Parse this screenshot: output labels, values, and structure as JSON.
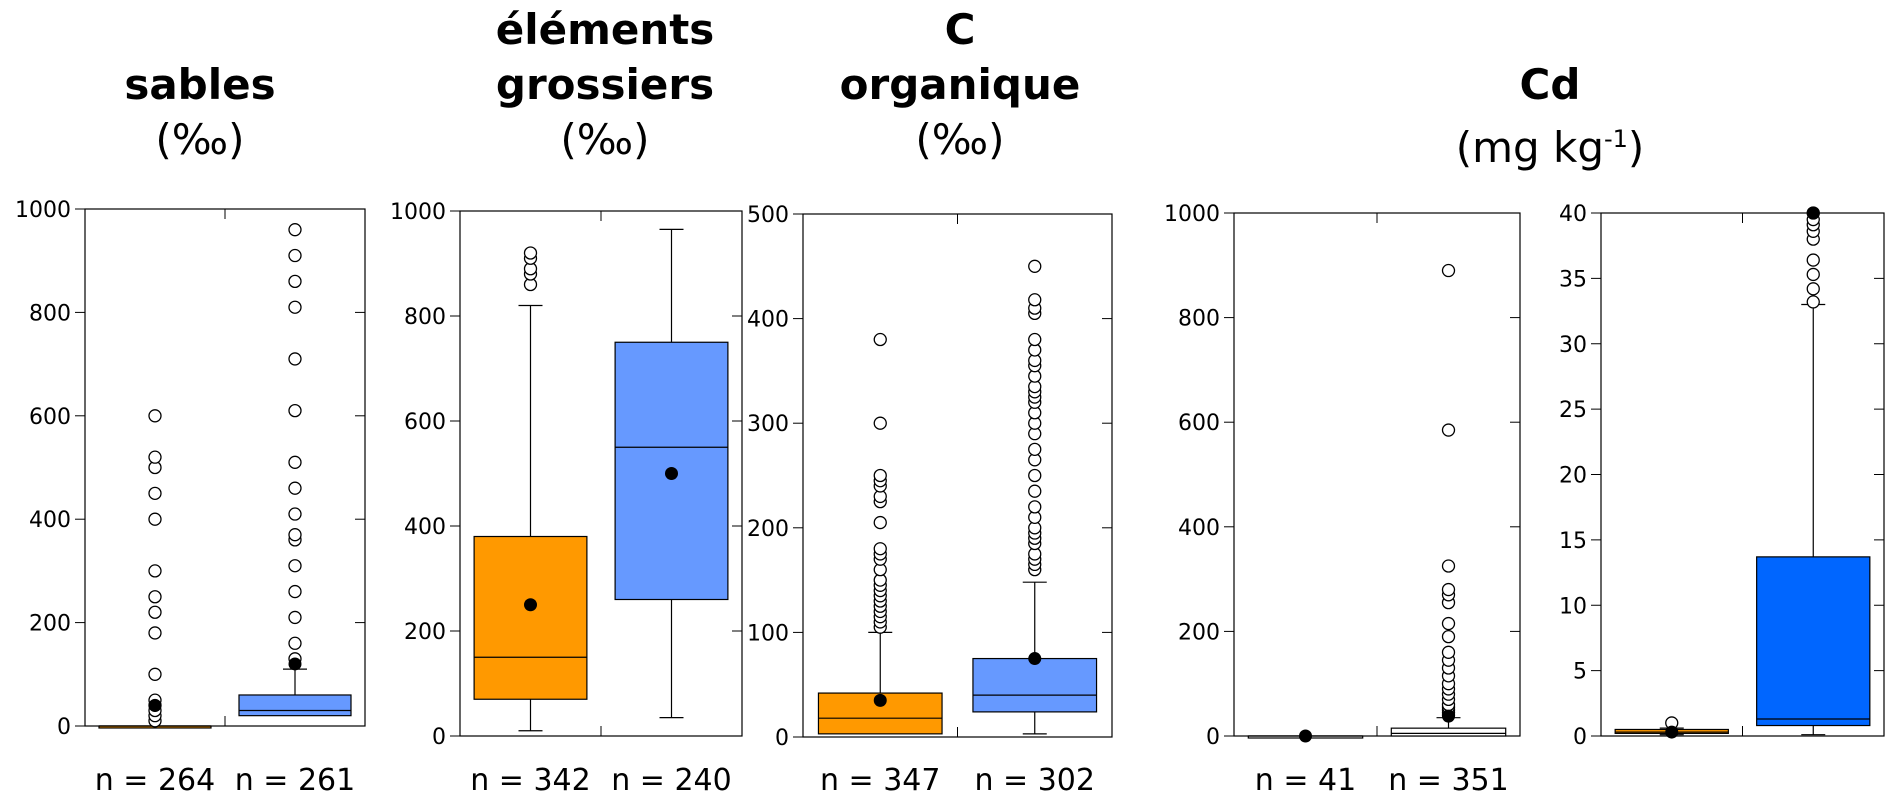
{
  "titles": {
    "sables": {
      "main": "sables",
      "unit": "(‰)"
    },
    "elements": {
      "main_line1": "éléments",
      "main_line2": "grossiers",
      "unit": "(‰)"
    },
    "corg": {
      "main_line1": "C",
      "main_line2": "organique",
      "unit": "(‰)"
    },
    "cd": {
      "main": "Cd",
      "unit_base": "(mg kg",
      "unit_sup": "-1",
      "unit_end": ")"
    }
  },
  "colors": {
    "orange": "#FF9900",
    "light_blue": "#6699FF",
    "blue": "#0066FF",
    "white": "#FFFFFF"
  },
  "chart_data": [
    {
      "type": "box",
      "title": "sables (‰)",
      "ylim": [
        0,
        1000
      ],
      "yticks": [
        0,
        200,
        400,
        600,
        800,
        1000
      ],
      "boxes": [
        {
          "n_label": "n = 264",
          "color": "#FF9900",
          "q1": 0,
          "median": 0,
          "q3": 0,
          "whisker_low": 0,
          "whisker_high": 0,
          "mean": 40,
          "outliers": [
            10,
            20,
            30,
            40,
            50,
            100,
            180,
            220,
            250,
            300,
            400,
            450,
            500,
            520,
            600
          ]
        },
        {
          "n_label": "n = 261",
          "color": "#6699FF",
          "q1": 20,
          "median": 30,
          "q3": 60,
          "whisker_low": 20,
          "whisker_high": 110,
          "mean": 120,
          "outliers": [
            130,
            160,
            210,
            260,
            310,
            360,
            370,
            410,
            460,
            510,
            610,
            710,
            810,
            860,
            910,
            960
          ]
        }
      ]
    },
    {
      "type": "box",
      "title": "éléments grossiers (‰)",
      "ylim": [
        0,
        1000
      ],
      "yticks": [
        0,
        200,
        400,
        600,
        800,
        1000
      ],
      "boxes": [
        {
          "n_label": "n = 342",
          "color": "#FF9900",
          "q1": 70,
          "median": 150,
          "q3": 380,
          "whisker_low": 10,
          "whisker_high": 820,
          "mean": 250,
          "outliers": [
            860,
            880,
            890,
            910,
            920
          ]
        },
        {
          "n_label": "n = 240",
          "color": "#6699FF",
          "q1": 260,
          "median": 550,
          "q3": 750,
          "whisker_low": 35,
          "whisker_high": 965,
          "mean": 500,
          "outliers": []
        }
      ]
    },
    {
      "type": "box",
      "title": "C organique (‰)",
      "ylim": [
        0,
        500
      ],
      "yticks": [
        0,
        100,
        200,
        300,
        400,
        500
      ],
      "boxes": [
        {
          "n_label": "n = 347",
          "color": "#FF9900",
          "q1": 3,
          "median": 18,
          "q3": 42,
          "whisker_low": 3,
          "whisker_high": 100,
          "mean": 35,
          "outliers": [
            105,
            110,
            115,
            120,
            125,
            130,
            135,
            140,
            145,
            150,
            160,
            170,
            175,
            180,
            205,
            225,
            230,
            240,
            245,
            250,
            300,
            380
          ]
        },
        {
          "n_label": "n = 302",
          "color": "#6699FF",
          "q1": 24,
          "median": 40,
          "q3": 75,
          "whisker_low": 3,
          "whisker_high": 148,
          "mean": 75,
          "outliers": [
            160,
            165,
            170,
            175,
            185,
            190,
            195,
            200,
            210,
            220,
            235,
            250,
            265,
            275,
            290,
            300,
            310,
            320,
            325,
            330,
            335,
            345,
            355,
            360,
            370,
            380,
            405,
            410,
            418,
            450
          ]
        }
      ]
    },
    {
      "type": "box",
      "title": "Cd (mg kg-1)",
      "ylim": [
        0,
        1000
      ],
      "yticks": [
        0,
        200,
        400,
        600,
        800,
        1000
      ],
      "boxes": [
        {
          "n_label": "n = 41",
          "color": "#FFFFFF",
          "q1": 0,
          "median": 0,
          "q3": 0,
          "whisker_low": 0,
          "whisker_high": 0,
          "mean": 0,
          "outliers": []
        },
        {
          "n_label": "n = 351",
          "color": "#FFFFFF",
          "q1": 0,
          "median": 5,
          "q3": 15,
          "whisker_low": 0,
          "whisker_high": 35,
          "mean": 38,
          "outliers": [
            40,
            45,
            50,
            55,
            60,
            70,
            80,
            90,
            100,
            115,
            130,
            145,
            160,
            190,
            215,
            255,
            270,
            280,
            325,
            585,
            890
          ]
        }
      ]
    },
    {
      "type": "box",
      "title": "Cd (mg kg-1)",
      "ylim": [
        0,
        40
      ],
      "yticks": [
        0,
        5,
        10,
        15,
        20,
        25,
        30,
        35,
        40
      ],
      "boxes": [
        {
          "color": "#FF9900",
          "q1": 0.2,
          "median": 0.3,
          "q3": 0.5,
          "whisker_low": 0.1,
          "whisker_high": 0.6,
          "mean": 0.3,
          "outliers": [
            1.0
          ]
        },
        {
          "color": "#0066FF",
          "q1": 0.8,
          "median": 1.3,
          "q3": 13.7,
          "whisker_low": 0.1,
          "whisker_high": 33.0,
          "mean": 40,
          "outliers": [
            33.2,
            34.2,
            35.3,
            36.4,
            38.0,
            38.6,
            39.1,
            39.5,
            40
          ]
        }
      ]
    }
  ]
}
